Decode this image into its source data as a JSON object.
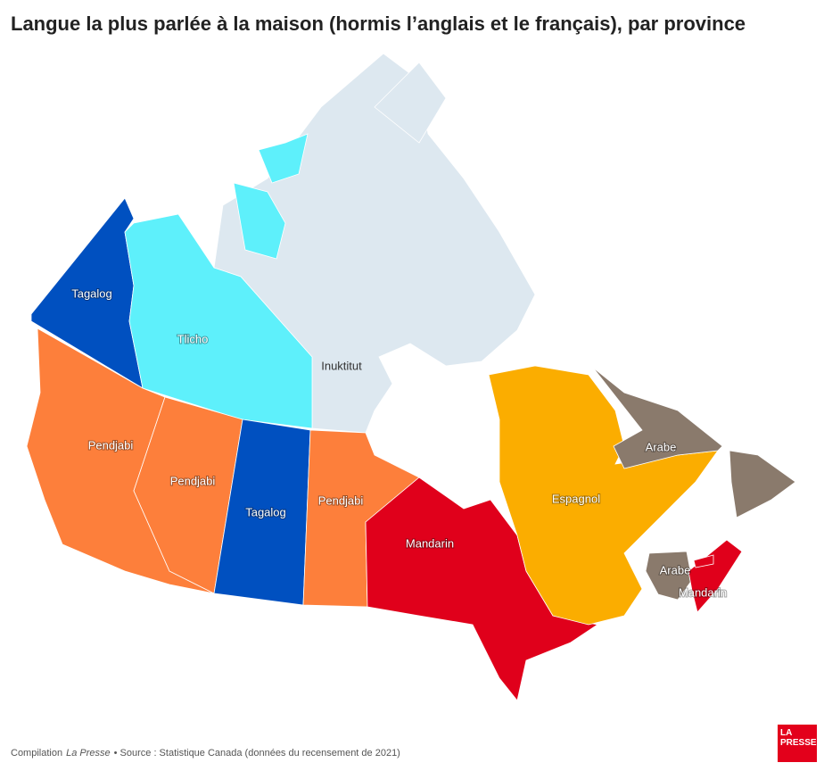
{
  "title": "Langue la plus parlée à la maison (hormis l’anglais et le français), par province",
  "regions": [
    {
      "label": "Tagalog",
      "color": "#0050c0"
    },
    {
      "label": "Tlicho",
      "color": "#5ef0fb"
    },
    {
      "label": "Inuktitut",
      "color": "#dde8f0"
    },
    {
      "label": "Pendjabi",
      "color": "#fd7f3b"
    },
    {
      "label": "Pendjabi",
      "color": "#fd7f3b"
    },
    {
      "label": "Tagalog",
      "color": "#0050c0"
    },
    {
      "label": "Pendjabi",
      "color": "#fd7f3b"
    },
    {
      "label": "Mandarin",
      "color": "#e0001b"
    },
    {
      "label": "Espagnol",
      "color": "#fbad00"
    },
    {
      "label": "Arabe",
      "color": "#8a7a6c"
    },
    {
      "label": "Arabe",
      "color": "#8a7a6c"
    },
    {
      "label": "Mandarin",
      "color": "#e0001b"
    }
  ],
  "footer": {
    "compilation": "Compilation",
    "publication": "La Presse",
    "source": "• Source : Statistique Canada (données du recensement de 2021)"
  },
  "logo": {
    "line1": "LA",
    "line2": "PRESSE"
  }
}
